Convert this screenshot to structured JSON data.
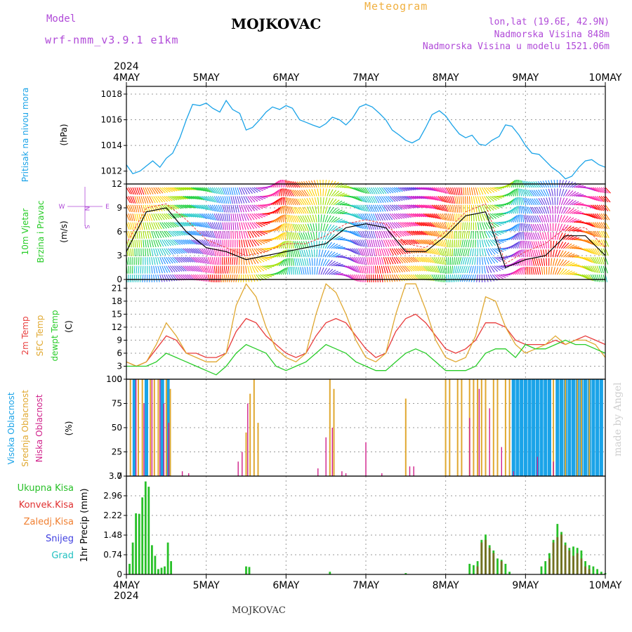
{
  "header": {
    "model_label": "Model",
    "model_value": "wrf-nmm_v3.9.1 e1km",
    "station": "MOJKOVAC",
    "meteogram": "Meteogram",
    "lonlat": "lon,lat (19.6E, 42.9N)",
    "altitude": "Nadmorska Visina 848m",
    "model_altitude": "Nadmorska Visina u modelu 1521.06m"
  },
  "time_axis": {
    "year": "2024",
    "labels": [
      "4MAY",
      "5MAY",
      "6MAY",
      "7MAY",
      "8MAY",
      "9MAY",
      "10MAY"
    ]
  },
  "footer": {
    "station": "MOJKOVAC",
    "credit": "made by Angel"
  },
  "colors": {
    "pressure": "#1aa3e8",
    "temp2m": "#e83c3c",
    "sfc_temp": "#e0a830",
    "dewpt": "#28cc28",
    "high_cloud": "#1aa3e8",
    "mid_cloud": "#e0a830",
    "low_cloud": "#d0208a",
    "total_precip": "#28c028",
    "conv_precip": "#e03030",
    "frozen_precip": "#f07f30",
    "snow": "#4040e0",
    "graupel": "#20c0c0",
    "label_purple": "#b04ad8"
  },
  "chart_data": [
    {
      "type": "line",
      "title": "",
      "ylabel_lines": [
        "Pritisak na nivou mora",
        "(hPa)"
      ],
      "ylim": [
        1011,
        1018.6
      ],
      "yticks": [
        1012,
        1014,
        1016,
        1018
      ],
      "grid": true,
      "x": [
        0,
        0.08,
        0.17,
        0.25,
        0.33,
        0.42,
        0.5,
        0.58,
        0.67,
        0.75,
        0.83,
        0.92,
        1,
        1.08,
        1.17,
        1.25,
        1.33,
        1.42,
        1.5,
        1.58,
        1.67,
        1.75,
        1.83,
        1.92,
        2,
        2.08,
        2.17,
        2.25,
        2.33,
        2.42,
        2.5,
        2.58,
        2.67,
        2.75,
        2.83,
        2.92,
        3,
        3.08,
        3.17,
        3.25,
        3.33,
        3.42,
        3.5,
        3.58,
        3.67,
        3.75,
        3.83,
        3.92,
        4,
        4.08,
        4.17,
        4.25,
        4.33,
        4.42,
        4.5,
        4.58,
        4.67,
        4.75,
        4.83,
        4.92,
        5,
        5.08,
        5.17,
        5.25,
        5.33,
        5.42,
        5.5,
        5.58,
        5.67,
        5.75,
        5.83,
        5.92,
        6
      ],
      "series": [
        {
          "name": "",
          "values": [
            1012.5,
            1011.8,
            1012.0,
            1012.4,
            1012.8,
            1012.3,
            1013.0,
            1013.4,
            1014.6,
            1016.0,
            1017.2,
            1017.1,
            1017.3,
            1016.9,
            1016.6,
            1017.5,
            1016.8,
            1016.5,
            1015.2,
            1015.4,
            1016.0,
            1016.6,
            1017.0,
            1016.8,
            1017.1,
            1016.9,
            1016.0,
            1015.8,
            1015.6,
            1015.4,
            1015.7,
            1016.2,
            1016.0,
            1015.6,
            1016.1,
            1017.0,
            1017.2,
            1017.0,
            1016.5,
            1016.0,
            1015.2,
            1014.8,
            1014.4,
            1014.2,
            1014.5,
            1015.4,
            1016.4,
            1016.7,
            1016.3,
            1015.6,
            1014.9,
            1014.6,
            1014.8,
            1014.1,
            1014.0,
            1014.4,
            1014.7,
            1015.6,
            1015.5,
            1014.8,
            1014.0,
            1013.4,
            1013.3,
            1012.8,
            1012.3,
            1011.9,
            1011.4,
            1011.6,
            1012.3,
            1012.8,
            1012.9,
            1012.5,
            1012.3
          ]
        }
      ]
    },
    {
      "type": "line",
      "title": "",
      "ylabel_lines": [
        "10m Vjetar",
        "Brzina i Pravac",
        "(m/s)"
      ],
      "compass": [
        "N",
        "W",
        "E",
        "S"
      ],
      "ylim": [
        0,
        12
      ],
      "yticks": [
        0,
        3,
        6,
        9,
        12
      ],
      "grid": true,
      "x": [
        0,
        0.25,
        0.5,
        0.75,
        1,
        1.25,
        1.5,
        1.75,
        2,
        2.25,
        2.5,
        2.75,
        3,
        3.25,
        3.5,
        3.75,
        4,
        4.25,
        4.5,
        4.75,
        5,
        5.25,
        5.5,
        5.75,
        6
      ],
      "series": [
        {
          "name": "",
          "values": [
            3.5,
            8.5,
            9.0,
            6.0,
            4.0,
            3.5,
            2.5,
            3.0,
            3.5,
            4.0,
            4.5,
            6.5,
            7.0,
            6.5,
            3.5,
            3.5,
            5.5,
            8.0,
            8.5,
            1.5,
            2.5,
            3.0,
            5.5,
            5.5,
            3.0
          ]
        },
        {
          "name": "",
          "values": [
            4.5,
            9.0,
            9.5,
            7.5,
            5.0,
            4.0,
            3.0,
            3.5,
            4.5,
            4.5,
            5.5,
            7.0,
            7.5,
            7.0,
            4.5,
            4.0,
            6.0,
            8.5,
            9.5,
            2.0,
            3.5,
            4.5,
            6.5,
            6.5,
            4.0
          ]
        }
      ]
    },
    {
      "type": "line",
      "title": "",
      "ylabel_lines": [
        "2m Temp",
        "SFC Temp",
        "dewpt Temp",
        "(C)"
      ],
      "ylim": [
        0,
        23
      ],
      "yticks": [
        0,
        3,
        6,
        9,
        12,
        15,
        18,
        21
      ],
      "grid": true,
      "x": [
        0,
        0.125,
        0.25,
        0.375,
        0.5,
        0.625,
        0.75,
        0.875,
        1,
        1.125,
        1.25,
        1.375,
        1.5,
        1.625,
        1.75,
        1.875,
        2,
        2.125,
        2.25,
        2.375,
        2.5,
        2.625,
        2.75,
        2.875,
        3,
        3.125,
        3.25,
        3.375,
        3.5,
        3.625,
        3.75,
        3.875,
        4,
        4.125,
        4.25,
        4.375,
        4.5,
        4.625,
        4.75,
        4.875,
        5,
        5.125,
        5.25,
        5.375,
        5.5,
        5.625,
        5.75,
        5.875,
        6
      ],
      "series": [
        {
          "name": "2m Temp",
          "values": [
            4,
            3,
            4,
            7,
            10,
            9,
            6,
            6,
            5,
            5,
            6,
            11,
            14,
            13,
            10,
            8,
            6,
            5,
            6,
            10,
            13,
            14,
            13,
            10,
            7,
            5,
            6,
            11,
            14,
            15,
            13,
            10,
            7,
            6,
            7,
            9,
            13,
            13,
            12,
            9,
            8,
            8,
            8,
            9,
            8,
            9,
            10,
            9,
            8
          ]
        },
        {
          "name": "SFC Temp",
          "values": [
            4,
            3,
            4,
            8,
            13,
            10,
            6,
            5,
            4,
            4,
            6,
            17,
            22,
            19,
            12,
            7,
            5,
            4,
            6,
            15,
            22,
            20,
            15,
            9,
            5,
            4,
            6,
            15,
            22,
            22,
            16,
            9,
            5,
            4,
            5,
            10,
            19,
            18,
            12,
            8,
            6,
            7,
            8,
            10,
            8,
            9,
            9,
            8,
            5
          ]
        },
        {
          "name": "dewpt Temp",
          "values": [
            3,
            3,
            3,
            4,
            6,
            5,
            4,
            3,
            2,
            1,
            3,
            6,
            8,
            7,
            6,
            3,
            2,
            3,
            4,
            6,
            8,
            7,
            6,
            4,
            3,
            2,
            2,
            4,
            6,
            7,
            6,
            4,
            2,
            2,
            2,
            3,
            6,
            7,
            7,
            5,
            8,
            7,
            7,
            8,
            9,
            8,
            8,
            7,
            6
          ]
        }
      ]
    },
    {
      "type": "bar",
      "title": "",
      "ylabel_lines": [
        "Visoka Oblacnost",
        "Srednja Oblacnost",
        "Niska Oblacnost",
        "(%)"
      ],
      "ylim": [
        0,
        100
      ],
      "yticks": [
        0,
        25,
        50,
        75,
        100
      ],
      "grid": true,
      "bar_width_days": 0.03,
      "series": [
        {
          "name": "Visoka Oblacnost",
          "x": [
            0.1,
            0.25,
            0.45,
            0.52,
            4.85,
            4.9,
            4.95,
            5.0,
            5.05,
            5.1,
            5.15,
            5.2,
            5.25,
            5.3,
            5.4,
            5.45,
            5.5,
            5.55,
            5.6,
            5.65,
            5.7,
            5.75,
            5.8,
            5.85,
            5.9,
            5.95
          ],
          "values": [
            100,
            100,
            100,
            100,
            100,
            100,
            100,
            100,
            100,
            100,
            100,
            100,
            100,
            100,
            100,
            100,
            100,
            100,
            100,
            100,
            100,
            100,
            100,
            100,
            100,
            100
          ]
        },
        {
          "name": "Srednja Oblacnost",
          "x": [
            0.05,
            0.15,
            0.2,
            0.3,
            0.35,
            0.4,
            0.5,
            0.55,
            1.5,
            1.55,
            1.6,
            1.65,
            2.55,
            2.6,
            3.5,
            4.0,
            4.05,
            4.15,
            4.2,
            4.3,
            4.35,
            4.4,
            4.45,
            4.5,
            4.6,
            4.65,
            4.75,
            4.8,
            5.35,
            5.5,
            5.65,
            5.7,
            5.8
          ],
          "values": [
            100,
            100,
            100,
            100,
            100,
            100,
            100,
            90,
            45,
            85,
            100,
            55,
            100,
            90,
            80,
            100,
            100,
            100,
            100,
            100,
            100,
            100,
            100,
            100,
            100,
            100,
            100,
            100,
            100,
            100,
            100,
            100,
            100
          ]
        },
        {
          "name": "Niska Oblacnost",
          "x": [
            0.12,
            0.22,
            0.32,
            0.42,
            0.47,
            0.53,
            0.7,
            0.78,
            1.4,
            1.45,
            1.52,
            2.4,
            2.5,
            2.58,
            2.7,
            2.75,
            3.0,
            3.2,
            3.55,
            3.6,
            4.3,
            4.42,
            4.55,
            4.7,
            4.85,
            5.15,
            5.35
          ],
          "values": [
            100,
            75,
            100,
            100,
            75,
            55,
            5,
            3,
            15,
            25,
            75,
            8,
            40,
            50,
            5,
            3,
            35,
            3,
            10,
            10,
            60,
            90,
            70,
            30,
            5,
            20,
            15
          ]
        }
      ]
    },
    {
      "type": "bar",
      "title": "",
      "ylabel_lines": [
        "1hr Precip (mm)"
      ],
      "legend": [
        "Ukupna Kisa",
        "Konvek.Kisa",
        "Zaledj.Kisa",
        "Snijeg",
        "Grad"
      ],
      "ylim": [
        0,
        3.7
      ],
      "yticks": [
        0,
        0.74,
        1.48,
        2.22,
        2.96,
        3.7
      ],
      "ytick_labels": [
        "0",
        "0.74",
        "1.48",
        "2.22",
        "2.96",
        "3.7"
      ],
      "grid": true,
      "bar_width_days": 0.025,
      "series": [
        {
          "name": "Ukupna Kisa",
          "x": [
            0.04,
            0.08,
            0.12,
            0.16,
            0.2,
            0.24,
            0.28,
            0.32,
            0.36,
            0.4,
            0.44,
            0.48,
            0.52,
            0.56,
            0.6,
            0.64,
            1.5,
            1.54,
            2.55,
            3.5,
            4.3,
            4.35,
            4.4,
            4.45,
            4.5,
            4.55,
            4.6,
            4.65,
            4.7,
            4.75,
            4.8,
            4.85,
            5.2,
            5.25,
            5.3,
            5.35,
            5.4,
            5.45,
            5.5,
            5.55,
            5.6,
            5.65,
            5.7,
            5.75,
            5.8,
            5.85,
            5.9,
            5.95,
            6.0
          ],
          "values": [
            0.4,
            1.2,
            2.3,
            2.28,
            2.9,
            3.5,
            3.3,
            1.1,
            0.7,
            0.2,
            0.25,
            0.3,
            1.2,
            0.5,
            0.0,
            0.0,
            0.3,
            0.28,
            0.1,
            0.05,
            0.4,
            0.35,
            0.5,
            1.3,
            1.5,
            1.1,
            0.9,
            0.6,
            0.55,
            0.4,
            0.1,
            0.0,
            0.3,
            0.5,
            0.8,
            1.3,
            1.9,
            1.6,
            1.2,
            1.0,
            1.05,
            1.0,
            0.9,
            0.5,
            0.35,
            0.3,
            0.2,
            0.1,
            0.05
          ]
        },
        {
          "name": "Konvek.Kisa",
          "x": [
            4.4,
            4.45,
            4.5,
            4.55,
            4.6,
            4.7,
            5.3,
            5.35,
            5.4,
            5.45,
            5.5,
            5.55,
            5.6,
            5.65,
            5.7,
            5.75,
            5.8
          ],
          "values": [
            0.3,
            1.2,
            1.3,
            1.0,
            0.8,
            0.5,
            0.6,
            1.2,
            1.4,
            1.5,
            1.1,
            0.9,
            0.7,
            0.8,
            0.6,
            0.3,
            0.2
          ]
        }
      ]
    }
  ]
}
